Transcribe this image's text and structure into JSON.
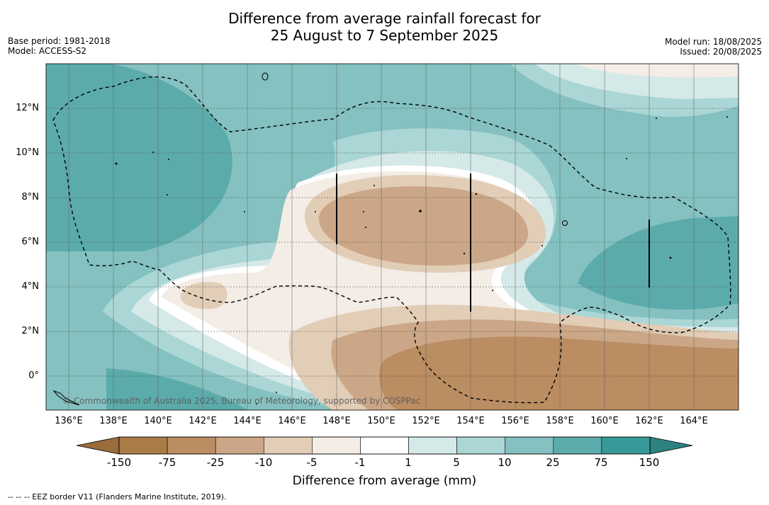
{
  "header": {
    "title_line1": "Difference from average rainfall forecast for",
    "title_line2": "25 August to 7 September 2025",
    "base_period": "Base period: 1981-2018",
    "model": "Model: ACCESS-S2",
    "model_run": "Model run: 18/08/2025",
    "issued": "Issued: 20/08/2025"
  },
  "map": {
    "lat_labels": [
      "12°N",
      "10°N",
      "8°N",
      "6°N",
      "4°N",
      "2°N",
      "0°"
    ],
    "lon_labels": [
      "136°E",
      "138°E",
      "140°E",
      "142°E",
      "144°E",
      "146°E",
      "148°E",
      "150°E",
      "152°E",
      "154°E",
      "156°E",
      "158°E",
      "160°E",
      "162°E",
      "164°E"
    ],
    "copyright": "© Commonwealth of Australia 2025, Bureau of Meteorology, supported by COSPPac"
  },
  "colorbar": {
    "ticks": [
      "-150",
      "-75",
      "-25",
      "-10",
      "-5",
      "-1",
      "1",
      "5",
      "10",
      "25",
      "75",
      "150"
    ],
    "colors": [
      "#a97b45",
      "#ba8d62",
      "#cba787",
      "#e2cdb7",
      "#f3ede6",
      "#ffffff",
      "#d4e9e8",
      "#aad6d5",
      "#84c1c0",
      "#5cabab",
      "#379a98"
    ],
    "label": "Difference from average (mm)"
  },
  "footnote": "--  --  -- EEZ border V11 (Flanders Marine Institute, 2019)."
}
